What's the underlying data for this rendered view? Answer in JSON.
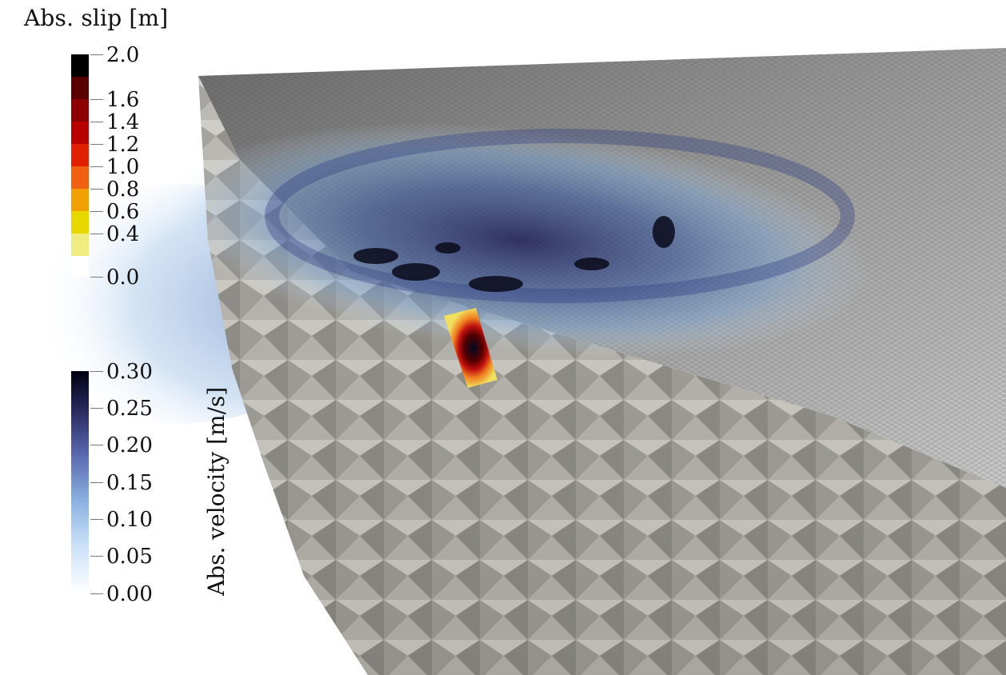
{
  "slip_legend": {
    "title": "Abs. slip [m]",
    "ticks": [
      "2.0",
      "1.6",
      "1.4",
      "1.2",
      "1.0",
      "0.8",
      "0.6",
      "0.4",
      "0.0"
    ],
    "colors": [
      "#000000",
      "#5a0000",
      "#8c0000",
      "#b80000",
      "#e02000",
      "#f06010",
      "#f0a000",
      "#e8d800",
      "#f0ec80",
      "#ffffff"
    ]
  },
  "velocity_legend": {
    "title": "Abs. velocity [m/s]",
    "ticks": [
      "0.30",
      "0.25",
      "0.20",
      "0.15",
      "0.10",
      "0.05",
      "0.00"
    ],
    "colors": [
      "#000010",
      "#2a2a60",
      "#5a6ab0",
      "#8ab0e0",
      "#c8e0f8",
      "#ffffff"
    ]
  }
}
